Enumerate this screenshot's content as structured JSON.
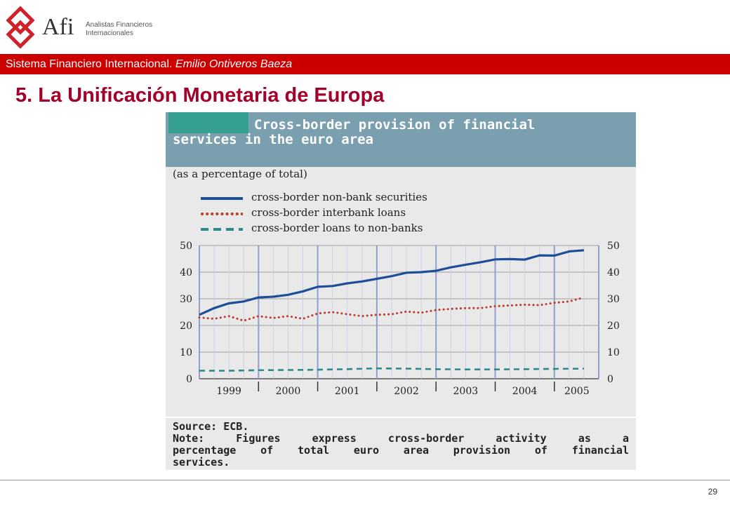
{
  "header": {
    "brand": "Afi",
    "brand_sub_line1": "Analistas Financieros",
    "brand_sub_line2": "Internacionales",
    "bar_text_plain": "Sistema Financiero Internacional. ",
    "bar_text_italic": "Emilio Ontiveros Baeza"
  },
  "slide": {
    "title": "5. La Unificación Monetaria de Europa",
    "page_number": "29"
  },
  "colors": {
    "accent_red": "#cc0000",
    "title_red": "#a3002a",
    "chart_header": "#7a9fae",
    "chart_accent": "#35a091",
    "series_securities": "#1f4e98",
    "series_interbank": "#c0392b",
    "series_nonbanks": "#2e8b8b",
    "grid_line": "#8fa0cf"
  },
  "chart_data": {
    "type": "line",
    "title_line1": "Cross-border provision of financial",
    "title_line2": "services in the euro area",
    "subtitle": "(as a percentage of total)",
    "ylim": [
      0,
      50
    ],
    "yticks": [
      "0",
      "10",
      "20",
      "30",
      "40",
      "50"
    ],
    "xticks": [
      "1999",
      "2000",
      "2001",
      "2002",
      "2003",
      "2004",
      "2005"
    ],
    "x_range": [
      1999.0,
      2005.75
    ],
    "grid": true,
    "legend_position": "top-left",
    "source": "Source: ECB.",
    "note_lines": [
      "Note: Figures express cross-border activity as a",
      "percentage of total euro area provision of financial",
      "services."
    ],
    "series": [
      {
        "name": "cross-border non-bank securities",
        "style": "solid",
        "x": [
          1999.0,
          1999.25,
          1999.5,
          1999.75,
          2000.0,
          2000.25,
          2000.5,
          2000.75,
          2001.0,
          2001.25,
          2001.5,
          2001.75,
          2002.0,
          2002.25,
          2002.5,
          2002.75,
          2003.0,
          2003.25,
          2003.5,
          2003.75,
          2004.0,
          2004.25,
          2004.5,
          2004.75,
          2005.0,
          2005.25,
          2005.5
        ],
        "y": [
          24,
          26.5,
          28.3,
          29,
          30.5,
          30.8,
          31.5,
          32.8,
          34.5,
          34.8,
          35.8,
          36.5,
          37.5,
          38.5,
          39.8,
          40,
          40.5,
          41.8,
          42.8,
          43.7,
          44.8,
          44.9,
          44.7,
          46.3,
          46.2,
          47.8,
          48.2
        ]
      },
      {
        "name": "cross-border interbank loans",
        "style": "dotted",
        "x": [
          1999.0,
          1999.25,
          1999.5,
          1999.75,
          2000.0,
          2000.25,
          2000.5,
          2000.75,
          2001.0,
          2001.25,
          2001.5,
          2001.75,
          2002.0,
          2002.25,
          2002.5,
          2002.75,
          2003.0,
          2003.25,
          2003.5,
          2003.75,
          2004.0,
          2004.25,
          2004.5,
          2004.75,
          2005.0,
          2005.25,
          2005.5
        ],
        "y": [
          23,
          22.5,
          23.5,
          21.8,
          23.5,
          22.8,
          23.5,
          22.5,
          24.5,
          25,
          24.2,
          23.5,
          24,
          24.2,
          25.2,
          24.8,
          25.8,
          26.2,
          26.5,
          26.5,
          27.2,
          27.5,
          27.8,
          27.6,
          28.5,
          29,
          30.5
        ]
      },
      {
        "name": "cross-border loans to non-banks",
        "style": "dashed",
        "x": [
          1999.0,
          1999.5,
          2000.0,
          2000.5,
          2001.0,
          2001.5,
          2002.0,
          2002.5,
          2003.0,
          2003.5,
          2004.0,
          2004.5,
          2005.0,
          2005.5
        ],
        "y": [
          3,
          3,
          3.2,
          3.3,
          3.4,
          3.6,
          3.9,
          3.8,
          3.6,
          3.5,
          3.5,
          3.6,
          3.7,
          3.8
        ]
      }
    ]
  }
}
